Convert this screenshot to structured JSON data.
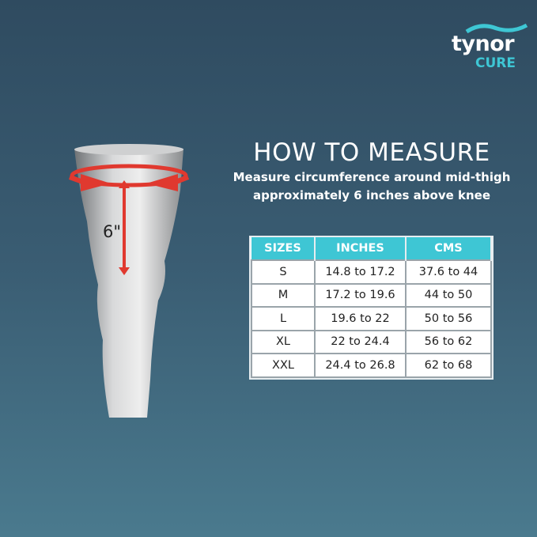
{
  "logo": {
    "brand": "tynor",
    "sub": "CURE",
    "accent": "#3ec6d4"
  },
  "heading": {
    "title": "HOW TO MEASURE",
    "subtitle_line1": "Measure circumference around mid-thigh",
    "subtitle_line2": "approximately 6 inches above knee"
  },
  "figure": {
    "label": "6\"",
    "arrow_color": "#e0392f"
  },
  "table": {
    "headers": [
      "SIZES",
      "INCHES",
      "CMS"
    ],
    "rows": [
      [
        "S",
        "14.8 to 17.2",
        "37.6 to 44"
      ],
      [
        "M",
        "17.2 to 19.6",
        "44 to 50"
      ],
      [
        "L",
        "19.6 to 22",
        "50 to 56"
      ],
      [
        "XL",
        "22 to 24.4",
        "56 to 62"
      ],
      [
        "XXL",
        "24.4 to 26.8",
        "62 to 68"
      ]
    ]
  }
}
